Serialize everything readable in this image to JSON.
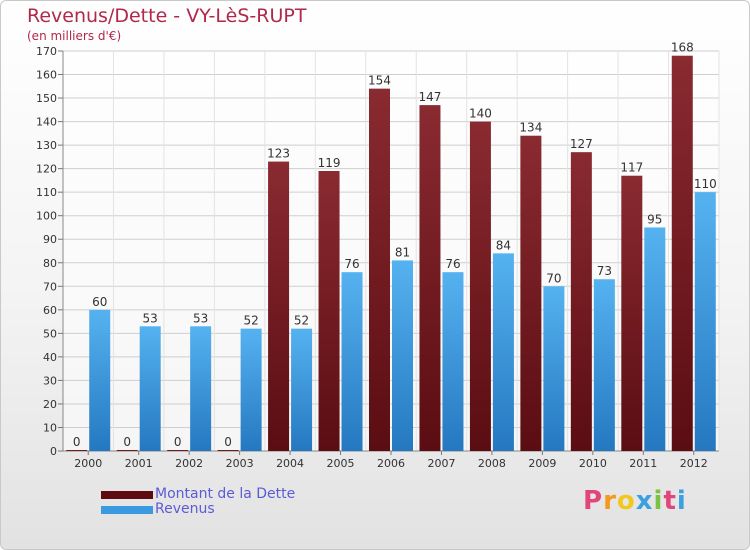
{
  "header": {
    "title": "Revenus/Dette - VY-LèS-RUPT",
    "subtitle": "(en milliers d'€)"
  },
  "chart_data": {
    "type": "bar",
    "categories": [
      "2000",
      "2001",
      "2002",
      "2003",
      "2004",
      "2005",
      "2006",
      "2007",
      "2008",
      "2009",
      "2010",
      "2011",
      "2012"
    ],
    "series": [
      {
        "name": "Montant de la Dette",
        "color": "#7a1f26",
        "values": [
          0,
          0,
          0,
          0,
          123,
          119,
          154,
          147,
          140,
          134,
          127,
          117,
          168
        ]
      },
      {
        "name": "Revenus",
        "color": "#3a9ae0",
        "values": [
          60,
          53,
          53,
          52,
          52,
          76,
          81,
          76,
          84,
          70,
          73,
          95,
          110
        ]
      }
    ],
    "ylim": [
      0,
      170
    ],
    "yticks": [
      0,
      10,
      20,
      30,
      40,
      50,
      60,
      70,
      80,
      90,
      100,
      110,
      120,
      130,
      140,
      150,
      160,
      170
    ],
    "grid": true,
    "legend_position": "bottom-left"
  },
  "legend": {
    "items": [
      {
        "label": "Montant de la Dette",
        "color": "#5e0b12"
      },
      {
        "label": "Revenus",
        "color": "#3a9ae0"
      }
    ]
  },
  "logo": {
    "letters": [
      "P",
      "r",
      "o",
      "x",
      "i",
      "t",
      "i"
    ],
    "colors": [
      "#e0457b",
      "#f29a1e",
      "#f2c81e",
      "#3aa0e0",
      "#7cc242",
      "#e0457b",
      "#3aa0e0"
    ]
  }
}
